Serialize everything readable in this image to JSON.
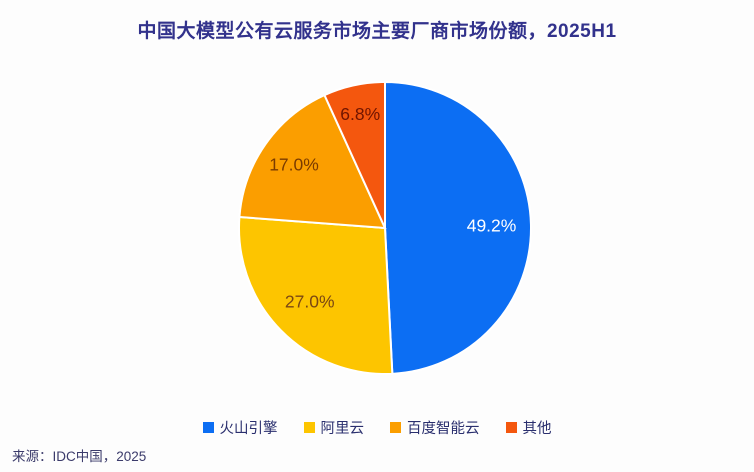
{
  "title": "中国大模型公有云服务市场主要厂商市场份额，2025H1",
  "source": "来源：IDC中国，2025",
  "chart_data": {
    "type": "pie",
    "title": "中国大模型公有云服务市场主要厂商市场份额，2025H1",
    "categories": [
      "火山引擎",
      "阿里云",
      "百度智能云",
      "其他"
    ],
    "values": [
      49.2,
      27.0,
      17.0,
      6.8
    ],
    "data_labels": [
      "49.2%",
      "27.0%",
      "17.0%",
      "6.8%"
    ],
    "colors": [
      "#0C6EF3",
      "#FDC500",
      "#FB9E00",
      "#F4570E"
    ],
    "label_colors": [
      "#FFFFFF",
      "#7A4713",
      "#7A3B00",
      "#701400"
    ],
    "label_radius": [
      0.73,
      0.72,
      0.76,
      0.8
    ],
    "start_angle_deg": 0,
    "direction": "clockwise",
    "legend_position": "bottom",
    "source_note": "来源：IDC中国，2025"
  }
}
